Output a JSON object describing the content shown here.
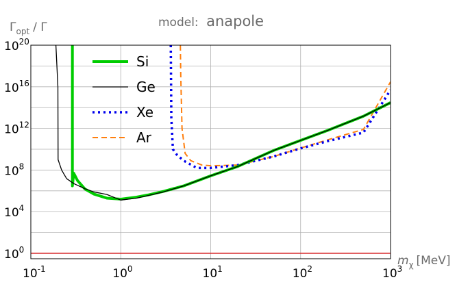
{
  "chart_data": {
    "type": "line",
    "title_prefix": "model:",
    "title": "anapole",
    "ylabel_main": "Γ",
    "ylabel_sub": "opt",
    "ylabel_suffix": "/ Γ",
    "xlabel_main": "m",
    "xlabel_sub": "χ",
    "xlabel_unit": "[MeV]",
    "xscale": "log",
    "yscale": "log",
    "xlim": [
      0.1,
      1000
    ],
    "ylim": [
      0.3,
      1e+20
    ],
    "grid": true,
    "legend_position": "top-left",
    "x_ticks": [
      {
        "base": "10",
        "exp": "-1"
      },
      {
        "base": "10",
        "exp": "0"
      },
      {
        "base": "10",
        "exp": "1"
      },
      {
        "base": "10",
        "exp": "2"
      },
      {
        "base": "10",
        "exp": "3"
      }
    ],
    "y_ticks": [
      {
        "base": "10",
        "exp": "0"
      },
      {
        "base": "10",
        "exp": "4"
      },
      {
        "base": "10",
        "exp": "8"
      },
      {
        "base": "10",
        "exp": "12"
      },
      {
        "base": "10",
        "exp": "16"
      },
      {
        "base": "10",
        "exp": "20"
      }
    ],
    "reference_line": {
      "y": 1,
      "color": "#d62728"
    },
    "series": [
      {
        "name": "Si",
        "color": "#00cc00",
        "style": "solid-thick",
        "x": [
          0.29,
          0.29,
          0.3,
          0.33,
          0.4,
          0.5,
          0.7,
          1.0,
          1.5,
          2,
          3,
          5,
          10,
          20,
          50,
          100,
          200,
          500,
          1000
        ],
        "y": [
          1e+20,
          3000000.0,
          50000000.0,
          10000000.0,
          1500000.0,
          500000.0,
          200000.0,
          160000.0,
          250000.0,
          400000.0,
          900000.0,
          3000000.0,
          28000000.0,
          220000000.0,
          7500000000.0,
          70000000000.0,
          650000000000.0,
          15000000000000.0,
          300000000000000.0
        ]
      },
      {
        "name": "Ge",
        "color": "#000000",
        "style": "solid-thin",
        "x": [
          0.19,
          0.2,
          0.201,
          0.22,
          0.25,
          0.3,
          0.4,
          0.5,
          0.7,
          1.0,
          1.5,
          2,
          3,
          5,
          10,
          20,
          50,
          100,
          200,
          500,
          1000
        ],
        "y": [
          1e+20,
          1e+16,
          1000000000.0,
          100000000.0,
          15000000.0,
          5000000.0,
          1600000.0,
          800000.0,
          450000.0,
          130000.0,
          200000.0,
          350000.0,
          800000.0,
          3000000.0,
          28000000.0,
          220000000.0,
          7500000000.0,
          70000000000.0,
          650000000000.0,
          15000000000000.0,
          300000000000000.0
        ]
      },
      {
        "name": "Xe",
        "color": "#0000ee",
        "style": "dotted",
        "x": [
          3.6,
          3.65,
          3.8,
          4.2,
          5,
          7,
          10,
          20,
          50,
          100,
          200,
          500,
          1000
        ],
        "y": [
          1e+20,
          10000000000000.0,
          10000000000.0,
          3000000000.0,
          800000000.0,
          160000000.0,
          160000000.0,
          300000000.0,
          2000000000.0,
          12000000000.0,
          60000000000.0,
          400000000000.0,
          5000000000000000.0
        ]
      },
      {
        "name": "Ar",
        "color": "#ff7f0e",
        "style": "dashed",
        "x": [
          4.6,
          4.65,
          4.8,
          5.2,
          6,
          8,
          10,
          15,
          20,
          50,
          100,
          200,
          500,
          1000
        ],
        "y": [
          1e+20,
          1e+17,
          1000000000000.0,
          4000000000.0,
          800000000.0,
          300000000.0,
          260000000.0,
          280000000.0,
          300000000.0,
          2000000000.0,
          13000000000.0,
          80000000000.0,
          800000000000.0,
          3e+16
        ]
      }
    ]
  }
}
